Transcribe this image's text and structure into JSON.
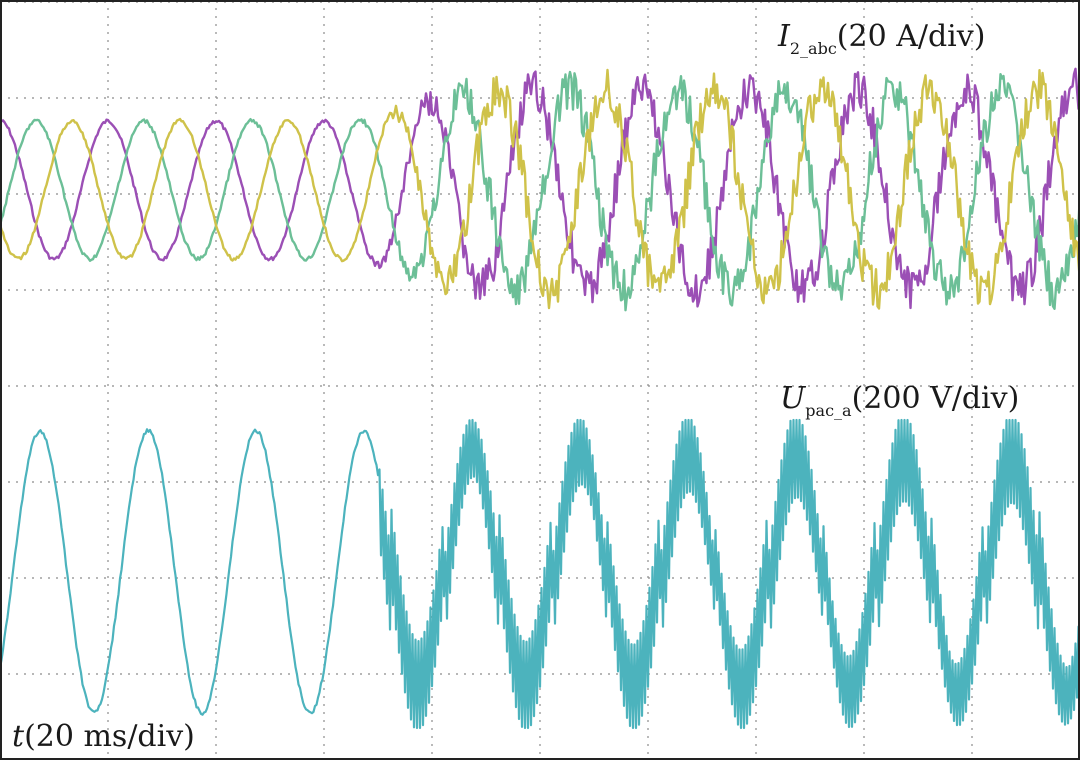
{
  "chart_data": [
    {
      "type": "line",
      "panel": "top",
      "label": {
        "symbol": "I",
        "subscript": "2_abc",
        "scale": "(20 A/div)"
      },
      "x_divisions": 10,
      "y_divisions": 4,
      "time_per_div_ms": 20,
      "disturbance_start_div": 3.3,
      "series": [
        {
          "phase": "a",
          "color": "#9b4fb5",
          "amplitude_div": 0.72,
          "phase_deg": 90
        },
        {
          "phase": "b",
          "color": "#6cbf97",
          "amplitude_div": 0.72,
          "phase_deg": -30
        },
        {
          "phase": "c",
          "color": "#cfc24a",
          "amplitude_div": 0.72,
          "phase_deg": 210
        }
      ],
      "period_div": 1.0
    },
    {
      "type": "line",
      "panel": "bottom",
      "label": {
        "symbol": "U",
        "subscript": "pac_a",
        "scale": "(200 V/div)"
      },
      "x_divisions": 10,
      "y_divisions": 4,
      "time_per_div_ms": 20,
      "disturbance_start_div": 3.5,
      "series": [
        {
          "phase": "a",
          "color": "#4cb3bd",
          "amplitude_div": 1.5
        }
      ],
      "period_div": 1.0
    }
  ],
  "time_label": {
    "symbol": "t",
    "scale": "(20 ms/div)"
  },
  "colors": {
    "background": "#ffffff",
    "grid": "#8c8c8c",
    "border": "#222222"
  }
}
